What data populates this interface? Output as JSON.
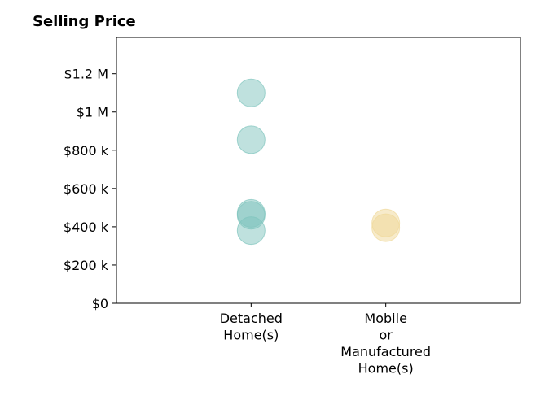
{
  "chart_data": {
    "type": "scatter",
    "title": "Selling Price",
    "xlabel": "",
    "ylabel": "",
    "categories": [
      [
        "Detached",
        "Home(s)"
      ],
      [
        "Mobile",
        "or",
        "Manufactured",
        "Home(s)"
      ]
    ],
    "y_ticks": [
      {
        "value": 0,
        "label": "$0"
      },
      {
        "value": 200000,
        "label": "$200 k"
      },
      {
        "value": 400000,
        "label": "$400 k"
      },
      {
        "value": 600000,
        "label": "$600 k"
      },
      {
        "value": 800000,
        "label": "$800 k"
      },
      {
        "value": 1000000,
        "label": "$1 M"
      },
      {
        "value": 1200000,
        "label": "$1.2 M"
      }
    ],
    "ylim": [
      0,
      1390000
    ],
    "xlim": [
      -1,
      2
    ],
    "grid": false,
    "series": [
      {
        "category_index": 0,
        "color": "#7fc4bd",
        "values": [
          1100000,
          855000,
          470000,
          460000,
          380000
        ]
      },
      {
        "category_index": 1,
        "color": "#f0d898",
        "values": [
          420000,
          395000
        ]
      }
    ]
  }
}
